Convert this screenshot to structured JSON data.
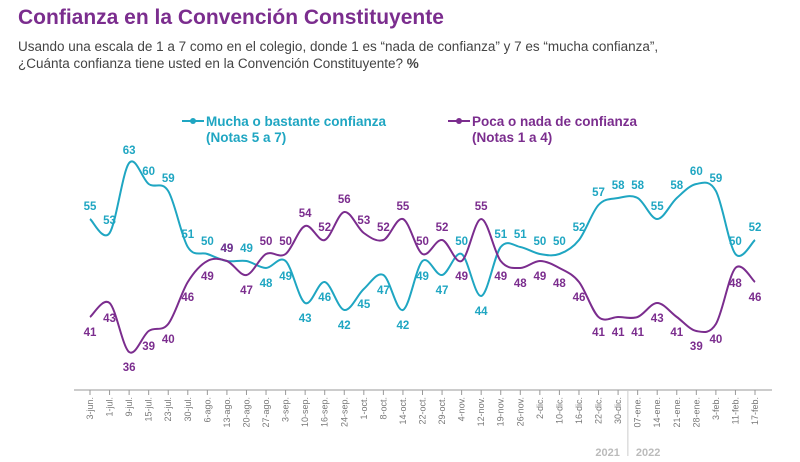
{
  "title": "Confianza en la Convención Constituyente",
  "subtitle_line1": "Usando una escala de 1 a 7 como en el colegio, donde 1 es “nada de confianza” y 7 es “mucha confianza”,",
  "subtitle_line2": "¿Cuánta confianza tiene usted en la Convención Constituyente?",
  "subtitle_unit": "%",
  "colors": {
    "mucha": "#1fa6c2",
    "poca": "#7b2d8e",
    "year": "#bbbbbb",
    "tick": "#777777",
    "axis": "#999999"
  },
  "chart_data": {
    "type": "line",
    "x": [
      "3-jun.",
      "1-jul.",
      "9-jul.",
      "15-jul.",
      "23-jul.",
      "30-jul.",
      "6-ago.",
      "13-ago.",
      "20-ago.",
      "27-ago.",
      "3-sep.",
      "10-sep.",
      "16-sep.",
      "24-sep.",
      "1-oct.",
      "8-oct.",
      "14-oct.",
      "22-oct.",
      "29-oct.",
      "4-nov.",
      "12-nov.",
      "19-nov.",
      "26-nov.",
      "2-dic.",
      "10-dic.",
      "16-dic.",
      "22-dic.",
      "30-dic.",
      "07-ene.",
      "14-ene.",
      "21-ene.",
      "28-ene.",
      "3-feb.",
      "11-feb.",
      "17-feb."
    ],
    "series": [
      {
        "name_line1": "Mucha o bastante confianza",
        "name_line2": "(Notas 5 a 7)",
        "values": [
          55,
          53,
          63,
          60,
          59,
          51,
          50,
          49,
          49,
          48,
          49,
          43,
          46,
          42,
          45,
          47,
          42,
          49,
          47,
          50,
          44,
          51,
          51,
          50,
          50,
          52,
          57,
          58,
          58,
          55,
          58,
          60,
          59,
          50,
          52
        ]
      },
      {
        "name_line1": "Poca o nada de confianza",
        "name_line2": "(Notas 1 a 4)",
        "values": [
          41,
          43,
          36,
          39,
          40,
          46,
          49,
          49,
          47,
          50,
          50,
          54,
          52,
          56,
          53,
          52,
          55,
          50,
          52,
          49,
          55,
          49,
          48,
          49,
          48,
          46,
          41,
          41,
          41,
          43,
          41,
          39,
          40,
          48,
          46
        ]
      }
    ],
    "year_labels": [
      "2021",
      "2022"
    ],
    "legend_position": "top"
  }
}
